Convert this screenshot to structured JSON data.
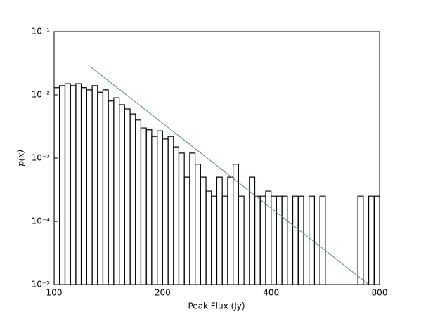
{
  "chart_data": {
    "type": "histogram",
    "xlabel": "Peak Flux (Jy)",
    "ylabel": "p(x)",
    "xlog": true,
    "ylog": true,
    "xlim": [
      100,
      800
    ],
    "ylim": [
      1e-05,
      0.1
    ],
    "xticks": [
      100,
      200,
      400,
      800
    ],
    "yticks": [
      {
        "value": 1e-05,
        "label": "10⁻⁵"
      },
      {
        "value": 0.0001,
        "label": "10⁻⁴"
      },
      {
        "value": 0.001,
        "label": "10⁻³"
      },
      {
        "value": 0.01,
        "label": "10⁻²"
      },
      {
        "value": 0.1,
        "label": "10⁻¹"
      }
    ],
    "color": "#000000",
    "bins": [
      100,
      103.5,
      107.2,
      111,
      114.9,
      118.9,
      123.1,
      127.5,
      132,
      136.6,
      141.4,
      146.4,
      151.6,
      156.9,
      162.5,
      168.2,
      174.1,
      180.3,
      186.6,
      193.2,
      200,
      207.1,
      214.4,
      221.9,
      229.7,
      237.8,
      246.2,
      254.9,
      263.9,
      273.2,
      282.8,
      292.8,
      303.1,
      313.8,
      324.9,
      336.4,
      348.2,
      360.5,
      373.2,
      386.4,
      400,
      414.1,
      428.7,
      443.8,
      459.5,
      475.7,
      492.5,
      509.8,
      527.8,
      546.4,
      565.7,
      585.6,
      606.3,
      627.7,
      649.8,
      672.7,
      696.4,
      721.0,
      746.4,
      772.7,
      800
    ],
    "values": [
      0.013,
      0.014,
      0.015,
      0.014,
      0.015,
      0.013,
      0.012,
      0.014,
      0.011,
      0.012,
      0.008,
      0.009,
      0.007,
      0.006,
      0.005,
      0.004,
      0.003,
      0.0028,
      0.0022,
      0.0027,
      0.002,
      0.0022,
      0.0015,
      0.0012,
      0.0005,
      0.0012,
      0.0008,
      0.0005,
      0.0003,
      0.00025,
      0.0005,
      0.00025,
      0.0005,
      0.0008,
      0.00025,
      0,
      0.0005,
      0.00025,
      0.00025,
      0.0003,
      0.00025,
      0.00025,
      0.00025,
      0,
      0.00025,
      0.00025,
      0,
      0.00025,
      0,
      0.00025,
      0,
      0,
      0,
      0,
      0,
      0,
      0.00025,
      0,
      0.00025,
      0.00025
    ],
    "fit": {
      "color": "#5a8a7a",
      "x": [
        127,
        747
      ],
      "y": [
        0.027,
        1e-05
      ]
    }
  }
}
